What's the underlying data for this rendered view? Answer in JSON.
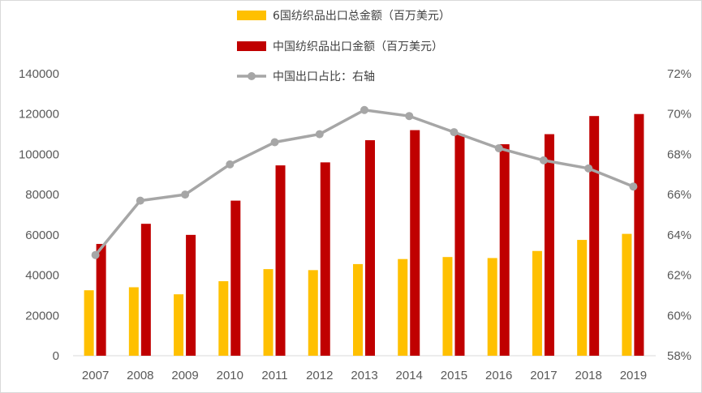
{
  "chart_data": {
    "type": "bar",
    "categories": [
      "2007",
      "2008",
      "2009",
      "2010",
      "2011",
      "2012",
      "2013",
      "2014",
      "2015",
      "2016",
      "2017",
      "2018",
      "2019"
    ],
    "series": [
      {
        "name": "6国纺织品出口总金额（百万美元）",
        "type": "bar",
        "axis": "left",
        "color": "#FFC000",
        "values": [
          32500,
          34000,
          30500,
          37000,
          43000,
          42500,
          45500,
          48000,
          49000,
          48500,
          52000,
          57500,
          60500
        ]
      },
      {
        "name": "中国纺织品出口金额（百万美元）",
        "type": "bar",
        "axis": "left",
        "color": "#C00000",
        "values": [
          55500,
          65500,
          60000,
          77000,
          94500,
          96000,
          107000,
          112000,
          110000,
          105000,
          110000,
          119000,
          120000
        ]
      },
      {
        "name": "中国出口占比：右轴",
        "type": "line",
        "axis": "right",
        "color": "#A6A6A6",
        "values": [
          63.0,
          65.7,
          66.0,
          67.5,
          68.6,
          69.0,
          70.2,
          69.9,
          69.1,
          68.3,
          67.7,
          67.3,
          66.4
        ]
      }
    ],
    "y_left": {
      "min": 0,
      "max": 140000,
      "ticks": [
        "0",
        "20000",
        "40000",
        "60000",
        "80000",
        "100000",
        "120000",
        "140000"
      ]
    },
    "y_right": {
      "min": 58,
      "max": 72,
      "ticks": [
        "58%",
        "60%",
        "62%",
        "64%",
        "66%",
        "68%",
        "70%",
        "72%"
      ]
    },
    "title": "",
    "xlabel": "",
    "ylabel": "",
    "grid": false,
    "legend_position": "top-center"
  }
}
